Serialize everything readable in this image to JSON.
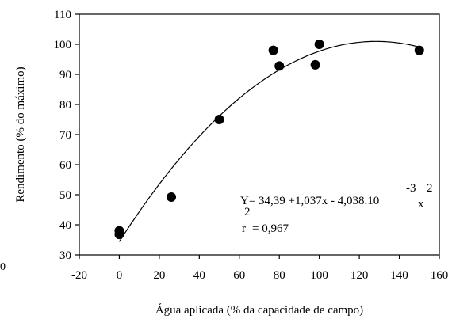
{
  "chart_data": {
    "type": "scatter",
    "title": "",
    "xlabel": "Água aplicada (% da capacidade de campo)",
    "ylabel": "Rendimento (% do máximo)",
    "xlim": [
      -20,
      160
    ],
    "ylim": [
      30,
      110
    ],
    "x_ticks": [
      -20,
      0,
      20,
      40,
      60,
      80,
      100,
      120,
      140,
      160
    ],
    "y_ticks": [
      30,
      40,
      50,
      60,
      70,
      80,
      90,
      100,
      110
    ],
    "x_tick_labels": [
      "-20",
      "0",
      "20",
      "40",
      "60",
      "80",
      "100",
      "120",
      "140",
      "160"
    ],
    "y_tick_labels": [
      "30",
      "40",
      "50",
      "60",
      "70",
      "80",
      "90",
      "100",
      "110"
    ],
    "grid": false,
    "points": [
      {
        "x": 0,
        "y": 36.8
      },
      {
        "x": 0,
        "y": 38.0
      },
      {
        "x": 26,
        "y": 49.2
      },
      {
        "x": 50,
        "y": 75.0
      },
      {
        "x": 77,
        "y": 98.0
      },
      {
        "x": 80,
        "y": 92.8
      },
      {
        "x": 98,
        "y": 93.2
      },
      {
        "x": 100,
        "y": 100.0
      },
      {
        "x": 150,
        "y": 98.0
      }
    ],
    "fit": {
      "type": "quadratic",
      "intercept": 34.39,
      "linear": 1.037,
      "quadratic": -0.004038,
      "x_range": [
        0,
        150
      ]
    },
    "annotation": {
      "equation_main": "Y= 34,39 +1,037x - 4,038.10",
      "equation_exp": "-3",
      "equation_sq": "2",
      "r_main": "r",
      "r_exp": "2",
      "r_value": "= 0,967"
    },
    "stray_label": "0"
  }
}
